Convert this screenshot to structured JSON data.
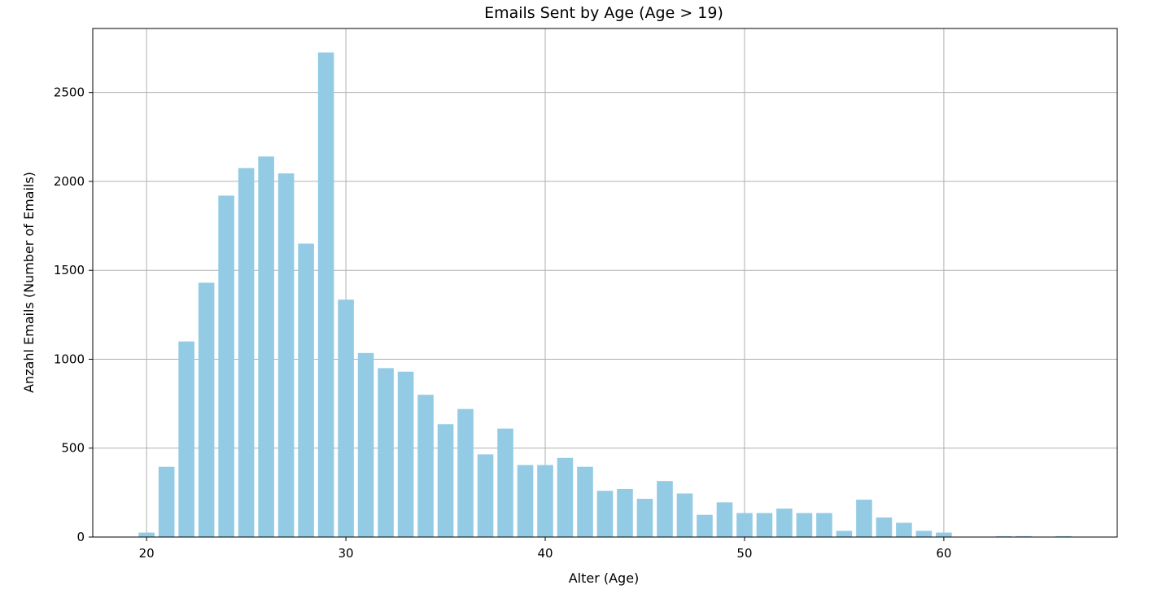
{
  "chart_data": {
    "type": "bar",
    "title": "Emails Sent by Age (Age > 19)",
    "xlabel": "Alter (Age)",
    "ylabel": "Anzahl Emails (Number of Emails)",
    "xlim": [
      17.3,
      68.7
    ],
    "ylim": [
      0,
      2860
    ],
    "xticks": [
      20,
      30,
      40,
      50,
      60
    ],
    "yticks": [
      0,
      500,
      1000,
      1500,
      2000,
      2500
    ],
    "grid": true,
    "bar_color": "#93cbe5",
    "x": [
      20,
      21,
      22,
      23,
      24,
      25,
      26,
      27,
      28,
      29,
      30,
      31,
      32,
      33,
      34,
      35,
      36,
      37,
      38,
      39,
      40,
      41,
      42,
      43,
      44,
      45,
      46,
      47,
      48,
      49,
      50,
      51,
      52,
      53,
      54,
      55,
      56,
      57,
      58,
      59,
      60,
      63,
      64,
      66
    ],
    "values": [
      25,
      395,
      1100,
      1430,
      1920,
      2075,
      2140,
      2045,
      1650,
      2725,
      1335,
      1035,
      950,
      930,
      800,
      635,
      720,
      465,
      610,
      405,
      405,
      445,
      395,
      260,
      270,
      215,
      315,
      245,
      125,
      195,
      135,
      135,
      160,
      135,
      135,
      35,
      210,
      110,
      80,
      35,
      25,
      5,
      5,
      5
    ]
  }
}
